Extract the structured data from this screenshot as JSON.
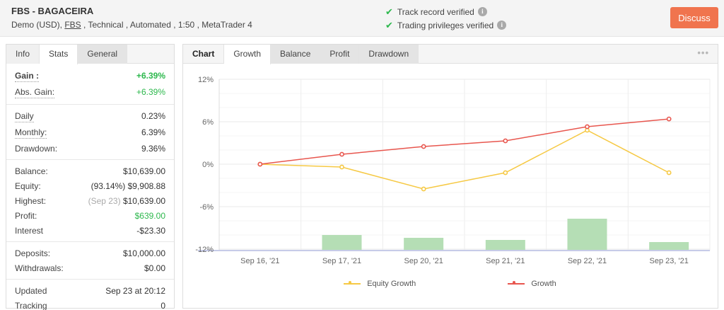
{
  "icons": {
    "check": "✔",
    "info": "i",
    "ellipsis": "•••"
  },
  "header": {
    "title": "FBS - BAGACEIRA",
    "subtitle": {
      "pre": "Demo (USD), ",
      "broker_link": "FBS",
      "post": " , Technical , Automated , 1:50 , MetaTrader 4"
    },
    "verifications": [
      {
        "label": "Track record verified"
      },
      {
        "label": "Trading privileges verified"
      }
    ],
    "discuss_label": "Discuss"
  },
  "stats_panel": {
    "tabs": [
      {
        "label": "Info",
        "state": "light"
      },
      {
        "label": "Stats",
        "state": "active"
      },
      {
        "label": "General",
        "state": "default"
      }
    ],
    "groups": [
      [
        {
          "label": "Gain :",
          "value": "+6.39%",
          "green": true,
          "bold": true,
          "dotted": true
        },
        {
          "label": "Abs. Gain:",
          "value": "+6.39%",
          "green": true,
          "dotted": true
        }
      ],
      [
        {
          "label": "Daily",
          "value": "0.23%",
          "dotted": true
        },
        {
          "label": "Monthly:",
          "value": "6.39%",
          "dotted": true
        },
        {
          "label": "Drawdown:",
          "value": "9.36%"
        }
      ],
      [
        {
          "label": "Balance:",
          "value": "$10,639.00"
        },
        {
          "label": "Equity:",
          "value": "(93.14%) $9,908.88"
        },
        {
          "label": "Highest:",
          "muted_prefix": "(Sep 23) ",
          "value": "$10,639.00"
        },
        {
          "label": "Profit:",
          "value": "$639.00",
          "green": true
        },
        {
          "label": "Interest",
          "value": "-$23.30"
        }
      ],
      [
        {
          "label": "Deposits:",
          "value": "$10,000.00"
        },
        {
          "label": "Withdrawals:",
          "value": "$0.00"
        }
      ],
      [
        {
          "label": "Updated",
          "value": "Sep 23 at 20:12"
        },
        {
          "label": "Tracking",
          "value": "0"
        }
      ]
    ]
  },
  "chart_panel": {
    "tabs": [
      {
        "label": "Chart",
        "state": "labeltab"
      },
      {
        "label": "Growth",
        "state": "active"
      },
      {
        "label": "Balance",
        "state": "default"
      },
      {
        "label": "Profit",
        "state": "default"
      },
      {
        "label": "Drawdown",
        "state": "default"
      }
    ]
  },
  "chart_data": {
    "type": "line",
    "title": "Growth chart",
    "x": [
      "Sep 16, '21",
      "Sep 17, '21",
      "Sep 20, '21",
      "Sep 21, '21",
      "Sep 22, '21",
      "Sep 23, '21"
    ],
    "y_ticks": [
      12,
      6,
      0,
      -6,
      -12
    ],
    "y_tick_labels": [
      "12%",
      "6%",
      "0%",
      "-6%",
      "-12%"
    ],
    "ylim": [
      -12.2,
      12.5
    ],
    "y_major_step": 6,
    "y_minor_step": 2,
    "grid": true,
    "legend_position": "bottom",
    "series": [
      {
        "name": "Equity Growth",
        "color": "#f6c944",
        "values": [
          0,
          -0.4,
          -3.5,
          -1.2,
          4.8,
          -1.2
        ]
      },
      {
        "name": "Growth",
        "color": "#e8564e",
        "values": [
          0,
          1.4,
          2.5,
          3.3,
          5.3,
          6.39
        ]
      }
    ],
    "bars": {
      "color": "#b5deb5",
      "values": [
        0,
        2.2,
        1.8,
        1.5,
        4.5,
        1.2
      ]
    },
    "colors": {
      "major_grid": "#e8e8e8",
      "minor_grid": "#f5f5f5",
      "vert_grid": "#ededed",
      "axis_left": "#dcdcdc",
      "axis_bottom": "#c6cbe8",
      "tick_text": "#666"
    }
  }
}
